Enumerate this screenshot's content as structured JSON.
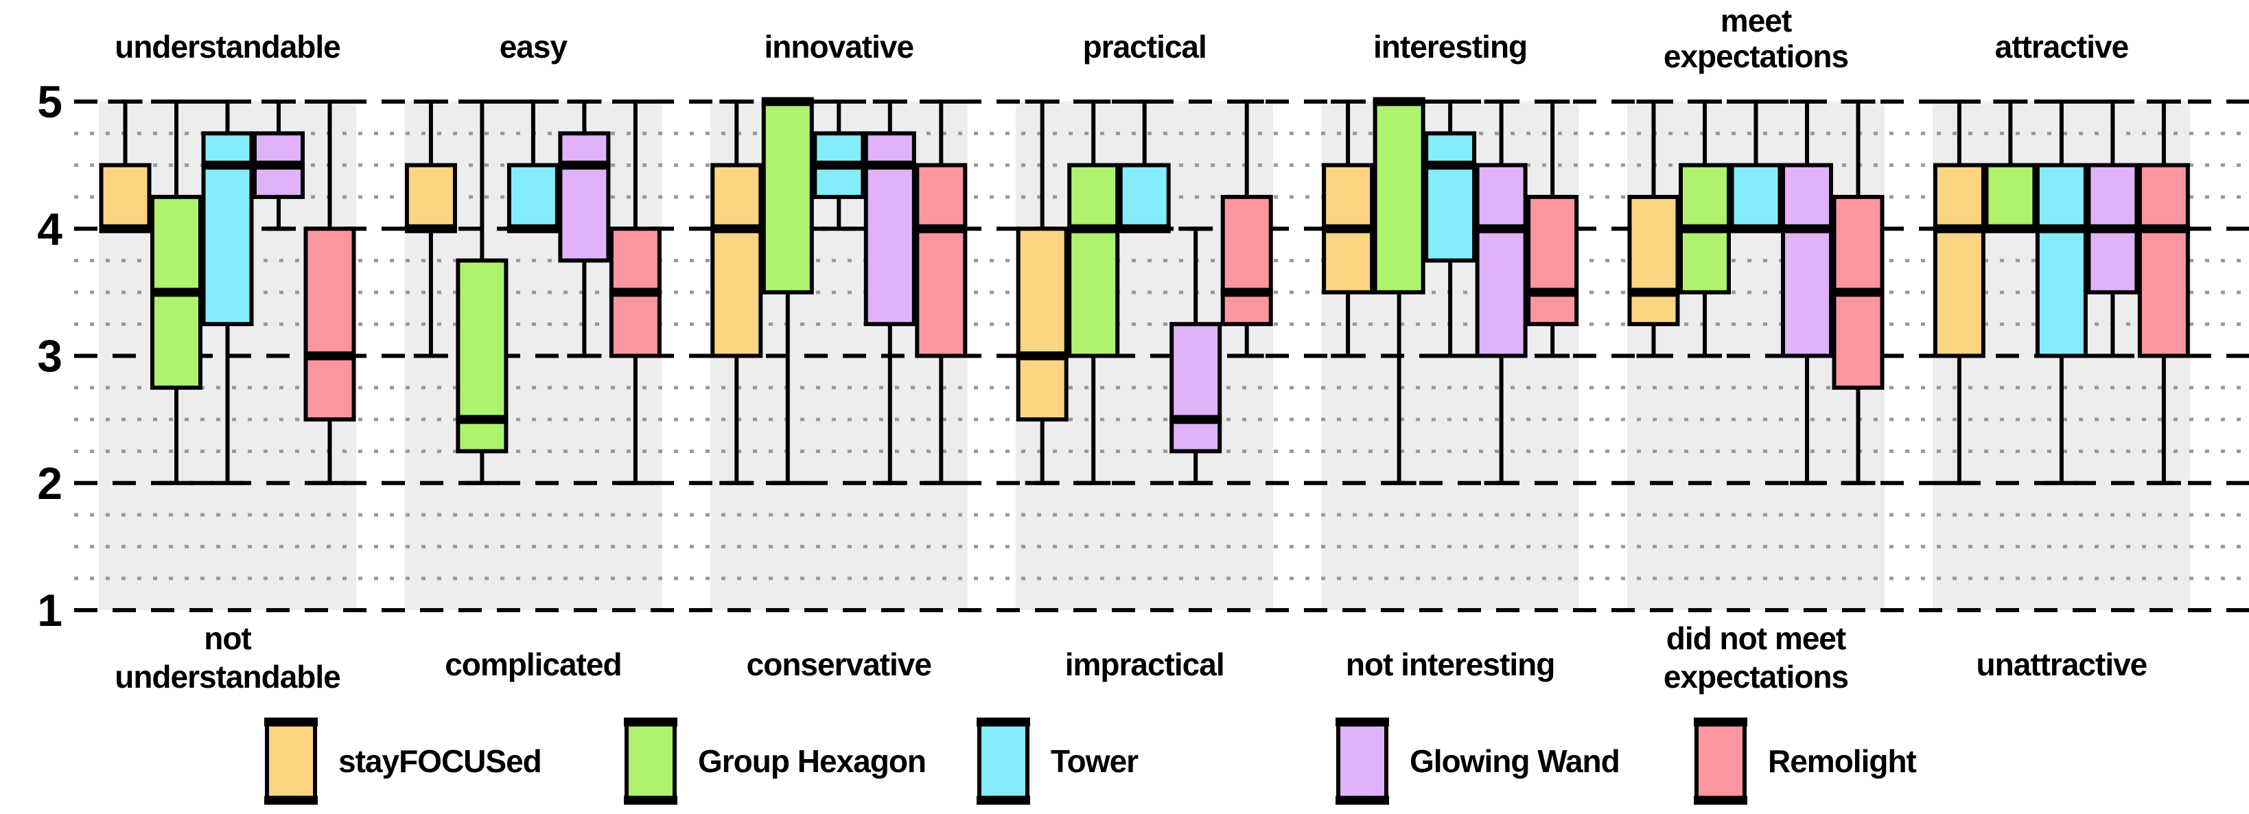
{
  "chart_data": {
    "type": "boxplot",
    "title": "",
    "description": "Grouped box-and-whisker plot of semantic differential ratings for five products across seven adjective pairs",
    "y_axis": {
      "min": 1,
      "max": 5,
      "major_ticks": [
        5,
        4,
        3,
        2,
        1
      ],
      "minor_step": 0.25,
      "grid": "major dashed black, minor dotted gray"
    },
    "legend_position": "bottom",
    "style": {
      "band_color": "#EDEDED",
      "background_color": "#FFFFFF",
      "major_grid_color": "#000000",
      "minor_grid_color": "#999999",
      "box_edge_color": "#000000"
    },
    "series": [
      {
        "name": "stayFOCUSed",
        "color": "#FCD583"
      },
      {
        "name": "Group Hexagon",
        "color": "#AEF26D"
      },
      {
        "name": "Tower",
        "color": "#84EDFB"
      },
      {
        "name": "Glowing Wand",
        "color": "#DFB2F9"
      },
      {
        "name": "Remolight",
        "color": "#FB96A1"
      }
    ],
    "groups": [
      {
        "positive_label": "understandable",
        "negative_label": "not\nunderstandable",
        "boxes": [
          {
            "series": "stayFOCUSed",
            "min": 4,
            "q1": 4,
            "median": 4,
            "q3": 4.5,
            "max": 5
          },
          {
            "series": "Group Hexagon",
            "min": 2,
            "q1": 2.75,
            "median": 3.5,
            "q3": 4.25,
            "max": 5
          },
          {
            "series": "Tower",
            "min": 2,
            "q1": 3.25,
            "median": 4.5,
            "q3": 4.75,
            "max": 5
          },
          {
            "series": "Glowing Wand",
            "min": 4,
            "q1": 4.25,
            "median": 4.5,
            "q3": 4.75,
            "max": 5
          },
          {
            "series": "Remolight",
            "min": 2,
            "q1": 2.5,
            "median": 3,
            "q3": 4,
            "max": 5
          }
        ]
      },
      {
        "positive_label": "easy",
        "negative_label": "complicated",
        "boxes": [
          {
            "series": "stayFOCUSed",
            "min": 3,
            "q1": 4,
            "median": 4,
            "q3": 4.5,
            "max": 5
          },
          {
            "series": "Group Hexagon",
            "min": 2,
            "q1": 2.25,
            "median": 2.5,
            "q3": 3.75,
            "max": 5
          },
          {
            "series": "Tower",
            "min": 4,
            "q1": 4,
            "median": 4,
            "q3": 4.5,
            "max": 5
          },
          {
            "series": "Glowing Wand",
            "min": 3,
            "q1": 3.75,
            "median": 4.5,
            "q3": 4.75,
            "max": 5
          },
          {
            "series": "Remolight",
            "min": 2,
            "q1": 3,
            "median": 3.5,
            "q3": 4,
            "max": 5
          }
        ]
      },
      {
        "positive_label": "innovative",
        "negative_label": "conservative",
        "boxes": [
          {
            "series": "stayFOCUSed",
            "min": 2,
            "q1": 3,
            "median": 4,
            "q3": 4.5,
            "max": 5
          },
          {
            "series": "Group Hexagon",
            "min": 2,
            "q1": 3.5,
            "median": 5,
            "q3": 5,
            "max": 5
          },
          {
            "series": "Tower",
            "min": 4,
            "q1": 4.25,
            "median": 4.5,
            "q3": 4.75,
            "max": 5
          },
          {
            "series": "Glowing Wand",
            "min": 2,
            "q1": 3.25,
            "median": 4.5,
            "q3": 4.75,
            "max": 5
          },
          {
            "series": "Remolight",
            "min": 2,
            "q1": 3,
            "median": 4,
            "q3": 4.5,
            "max": 5
          }
        ]
      },
      {
        "positive_label": "practical",
        "negative_label": "impractical",
        "boxes": [
          {
            "series": "stayFOCUSed",
            "min": 2,
            "q1": 2.5,
            "median": 3,
            "q3": 4,
            "max": 5
          },
          {
            "series": "Group Hexagon",
            "min": 2,
            "q1": 3,
            "median": 4,
            "q3": 4.5,
            "max": 5
          },
          {
            "series": "Tower",
            "min": 4,
            "q1": 4,
            "median": 4,
            "q3": 4.5,
            "max": 5
          },
          {
            "series": "Glowing Wand",
            "min": 2,
            "q1": 2.25,
            "median": 2.5,
            "q3": 3.25,
            "max": 4
          },
          {
            "series": "Remolight",
            "min": 3,
            "q1": 3.25,
            "median": 3.5,
            "q3": 4.25,
            "max": 5
          }
        ]
      },
      {
        "positive_label": "interesting",
        "negative_label": "not interesting",
        "boxes": [
          {
            "series": "stayFOCUSed",
            "min": 3,
            "q1": 3.5,
            "median": 4,
            "q3": 4.5,
            "max": 5
          },
          {
            "series": "Group Hexagon",
            "min": 2,
            "q1": 3.5,
            "median": 5,
            "q3": 5,
            "max": 5
          },
          {
            "series": "Tower",
            "min": 3,
            "q1": 3.75,
            "median": 4.5,
            "q3": 4.75,
            "max": 5
          },
          {
            "series": "Glowing Wand",
            "min": 2,
            "q1": 3,
            "median": 4,
            "q3": 4.5,
            "max": 5
          },
          {
            "series": "Remolight",
            "min": 3,
            "q1": 3.25,
            "median": 3.5,
            "q3": 4.25,
            "max": 5
          }
        ]
      },
      {
        "positive_label": "meet\nexpectations",
        "negative_label": "did not meet\nexpectations",
        "boxes": [
          {
            "series": "stayFOCUSed",
            "min": 3,
            "q1": 3.25,
            "median": 3.5,
            "q3": 4.25,
            "max": 5
          },
          {
            "series": "Group Hexagon",
            "min": 3,
            "q1": 3.5,
            "median": 4,
            "q3": 4.5,
            "max": 5
          },
          {
            "series": "Tower",
            "min": 4,
            "q1": 4,
            "median": 4,
            "q3": 4.5,
            "max": 5
          },
          {
            "series": "Glowing Wand",
            "min": 2,
            "q1": 3,
            "median": 4,
            "q3": 4.5,
            "max": 5
          },
          {
            "series": "Remolight",
            "min": 2,
            "q1": 2.75,
            "median": 3.5,
            "q3": 4.25,
            "max": 5
          }
        ]
      },
      {
        "positive_label": "attractive",
        "negative_label": "unattractive",
        "boxes": [
          {
            "series": "stayFOCUSed",
            "min": 2,
            "q1": 3,
            "median": 4,
            "q3": 4.5,
            "max": 5
          },
          {
            "series": "Group Hexagon",
            "min": 4,
            "q1": 4,
            "median": 4,
            "q3": 4.5,
            "max": 5
          },
          {
            "series": "Tower",
            "min": 2,
            "q1": 3,
            "median": 4,
            "q3": 4.5,
            "max": 5
          },
          {
            "series": "Glowing Wand",
            "min": 3,
            "q1": 3.5,
            "median": 4,
            "q3": 4.5,
            "max": 5
          },
          {
            "series": "Remolight",
            "min": 2,
            "q1": 3,
            "median": 4,
            "q3": 4.5,
            "max": 5
          }
        ]
      }
    ]
  }
}
